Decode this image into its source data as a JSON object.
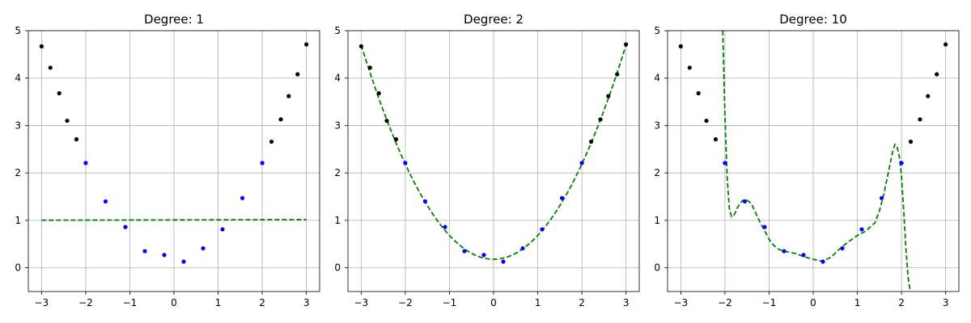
{
  "colors": {
    "training_points": "#0000ff",
    "other_points": "#000000",
    "fit_line": "#008000"
  },
  "chart_data": [
    {
      "type": "line",
      "title": "Degree: 1",
      "xlim": [
        -3.3,
        3.3
      ],
      "ylim": [
        -0.5,
        5
      ],
      "xticks": [
        -3,
        -2,
        -1,
        0,
        1,
        2,
        3
      ],
      "yticks": [
        0,
        1,
        2,
        3,
        4,
        5
      ],
      "grid": true,
      "fit": {
        "kind": "polynomial",
        "x_range": [
          -3,
          3
        ],
        "coefficients": [
          1.01,
          0.0022
        ]
      }
    },
    {
      "type": "line",
      "title": "Degree: 2",
      "xlim": [
        -3.3,
        3.3
      ],
      "ylim": [
        -0.5,
        5
      ],
      "xticks": [
        -3,
        -2,
        -1,
        0,
        1,
        2,
        3
      ],
      "yticks": [
        0,
        1,
        2,
        3,
        4,
        5
      ],
      "grid": true,
      "fit": {
        "kind": "polynomial",
        "x_range": [
          -3,
          3
        ],
        "coefficients": [
          0.18,
          0.0,
          0.502
        ]
      }
    },
    {
      "type": "line",
      "title": "Degree: 10",
      "xlim": [
        -3.3,
        3.3
      ],
      "ylim": [
        -0.5,
        5
      ],
      "xticks": [
        -3,
        -2,
        -1,
        0,
        1,
        2,
        3
      ],
      "yticks": [
        0,
        1,
        2,
        3,
        4,
        5
      ],
      "grid": true,
      "fit": {
        "kind": "sampled",
        "x": [
          -2.05,
          -2.0,
          -1.95,
          -1.9,
          -1.85,
          -1.8,
          -1.7,
          -1.6,
          -1.5,
          -1.4,
          -1.3,
          -1.2,
          -1.1,
          -1.0,
          -0.9,
          -0.8,
          -0.7,
          -0.6,
          -0.4,
          -0.2,
          0.0,
          0.2,
          0.4,
          0.6,
          0.8,
          1.0,
          1.2,
          1.4,
          1.5,
          1.6,
          1.7,
          1.8,
          1.85,
          1.9,
          1.95,
          2.0,
          2.05,
          2.1,
          2.15,
          2.2
        ],
        "y": [
          5.0,
          3.2,
          1.9,
          1.25,
          1.08,
          1.1,
          1.3,
          1.42,
          1.43,
          1.35,
          1.15,
          0.95,
          0.78,
          0.6,
          0.48,
          0.4,
          0.36,
          0.34,
          0.3,
          0.23,
          0.18,
          0.14,
          0.22,
          0.4,
          0.55,
          0.68,
          0.78,
          0.95,
          1.2,
          1.55,
          2.0,
          2.45,
          2.6,
          2.55,
          2.35,
          1.95,
          1.2,
          0.4,
          -0.2,
          -0.5
        ]
      }
    }
  ],
  "points": {
    "x": [
      -3.0,
      -2.8,
      -2.6,
      -2.42,
      -2.21,
      -2.0,
      -1.55,
      -1.1,
      -0.66,
      -0.22,
      0.22,
      0.66,
      1.1,
      1.55,
      2.0,
      2.21,
      2.42,
      2.6,
      2.8,
      3.0
    ],
    "y": [
      4.67,
      4.22,
      3.68,
      3.1,
      2.71,
      2.21,
      1.4,
      0.86,
      0.35,
      0.27,
      0.13,
      0.41,
      0.81,
      1.47,
      2.21,
      2.66,
      3.13,
      3.62,
      4.08,
      4.71
    ],
    "group": [
      "other",
      "other",
      "other",
      "other",
      "other",
      "training",
      "training",
      "training",
      "training",
      "training",
      "training",
      "training",
      "training",
      "training",
      "training",
      "other",
      "other",
      "other",
      "other",
      "other"
    ]
  }
}
